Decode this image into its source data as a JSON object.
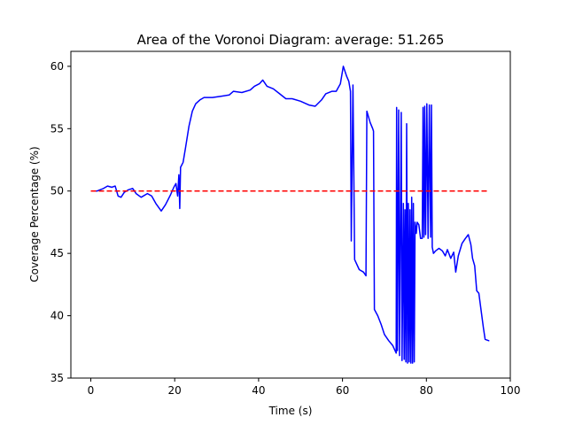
{
  "chart_data": {
    "type": "line",
    "title": "Area of the Voronoi Diagram: average: 51.265",
    "xlabel": "Time (s)",
    "ylabel": "Coverage Percentage (%)",
    "xlim": [
      -4.75,
      100
    ],
    "ylim": [
      35,
      61.2
    ],
    "xticks": [
      0,
      20,
      40,
      60,
      80,
      100
    ],
    "yticks": [
      35,
      40,
      45,
      50,
      55,
      60
    ],
    "grid": false,
    "legend": "none",
    "series": [
      {
        "name": "coverage",
        "color": "#0000ff",
        "style": "solid",
        "points": [
          [
            0,
            50.0
          ],
          [
            1.5,
            50.0
          ],
          [
            3,
            50.2
          ],
          [
            4,
            50.4
          ],
          [
            5,
            50.3
          ],
          [
            5.8,
            50.4
          ],
          [
            6.5,
            49.6
          ],
          [
            7.2,
            49.5
          ],
          [
            8,
            49.9
          ],
          [
            9,
            50.1
          ],
          [
            10,
            50.2
          ],
          [
            10.8,
            49.8
          ],
          [
            12,
            49.5
          ],
          [
            13.5,
            49.8
          ],
          [
            14.5,
            49.6
          ],
          [
            15.5,
            49.0
          ],
          [
            16.8,
            48.4
          ],
          [
            17.8,
            48.9
          ],
          [
            19,
            49.7
          ],
          [
            19.8,
            50.3
          ],
          [
            20.3,
            50.6
          ],
          [
            20.7,
            49.6
          ],
          [
            21.0,
            51.3
          ],
          [
            21.2,
            48.6
          ],
          [
            21.4,
            51.9
          ],
          [
            22,
            52.3
          ],
          [
            22.6,
            53.5
          ],
          [
            23.4,
            55.2
          ],
          [
            24.2,
            56.4
          ],
          [
            25,
            57.0
          ],
          [
            26,
            57.3
          ],
          [
            27,
            57.5
          ],
          [
            29,
            57.5
          ],
          [
            31,
            57.6
          ],
          [
            33,
            57.7
          ],
          [
            34,
            58.0
          ],
          [
            36,
            57.9
          ],
          [
            38,
            58.1
          ],
          [
            39,
            58.4
          ],
          [
            40.2,
            58.6
          ],
          [
            41,
            58.9
          ],
          [
            42,
            58.4
          ],
          [
            43.5,
            58.2
          ],
          [
            45,
            57.8
          ],
          [
            46.5,
            57.4
          ],
          [
            48,
            57.4
          ],
          [
            50,
            57.2
          ],
          [
            52,
            56.9
          ],
          [
            53.5,
            56.8
          ],
          [
            55,
            57.3
          ],
          [
            56,
            57.8
          ],
          [
            57.5,
            58.0
          ],
          [
            58.5,
            58.0
          ],
          [
            59.5,
            58.6
          ],
          [
            60.2,
            60.0
          ],
          [
            61,
            59.2
          ],
          [
            61.5,
            58.8
          ],
          [
            61.9,
            58.0
          ],
          [
            62.1,
            46.0
          ],
          [
            62.5,
            58.5
          ],
          [
            62.9,
            44.5
          ],
          [
            64,
            43.7
          ],
          [
            65,
            43.5
          ],
          [
            65.6,
            43.2
          ],
          [
            65.8,
            56.4
          ],
          [
            66.6,
            55.5
          ],
          [
            67.2,
            55.0
          ],
          [
            67.4,
            54.8
          ],
          [
            67.6,
            40.5
          ],
          [
            68.4,
            40.0
          ],
          [
            69.2,
            39.3
          ],
          [
            70,
            38.5
          ],
          [
            71,
            38.0
          ],
          [
            72,
            37.6
          ],
          [
            72.8,
            37.0
          ],
          [
            72.9,
            56.7
          ],
          [
            73.1,
            37.2
          ],
          [
            73.4,
            56.5
          ],
          [
            73.6,
            36.8
          ],
          [
            74,
            56.3
          ],
          [
            74.2,
            36.4
          ],
          [
            74.5,
            49.0
          ],
          [
            74.7,
            36.5
          ],
          [
            74.9,
            48.5
          ],
          [
            75.1,
            36.3
          ],
          [
            75.3,
            55.4
          ],
          [
            75.5,
            36.2
          ],
          [
            75.7,
            49.0
          ],
          [
            75.9,
            36.3
          ],
          [
            76.1,
            48.5
          ],
          [
            76.3,
            36.2
          ],
          [
            76.5,
            49.5
          ],
          [
            76.7,
            36.2
          ],
          [
            76.9,
            49.0
          ],
          [
            77.1,
            36.3
          ],
          [
            77.3,
            47.5
          ],
          [
            77.6,
            46.6
          ],
          [
            77.8,
            47.5
          ],
          [
            78.2,
            47.3
          ],
          [
            78.6,
            46.2
          ],
          [
            79.0,
            46.2
          ],
          [
            79.2,
            56.7
          ],
          [
            79.4,
            46.3
          ],
          [
            79.6,
            56.8
          ],
          [
            79.8,
            46.5
          ],
          [
            80.1,
            57.0
          ],
          [
            80.4,
            46.2
          ],
          [
            80.7,
            56.9
          ],
          [
            81.0,
            46.3
          ],
          [
            81.2,
            56.9
          ],
          [
            81.4,
            45.5
          ],
          [
            81.7,
            45.0
          ],
          [
            82.2,
            45.2
          ],
          [
            83,
            45.4
          ],
          [
            83.8,
            45.2
          ],
          [
            84.5,
            44.8
          ],
          [
            85,
            45.3
          ],
          [
            85.8,
            44.6
          ],
          [
            86.5,
            45.1
          ],
          [
            87,
            43.5
          ],
          [
            87.6,
            44.8
          ],
          [
            88.5,
            45.8
          ],
          [
            89.3,
            46.2
          ],
          [
            90,
            46.5
          ],
          [
            90.6,
            45.7
          ],
          [
            91,
            44.6
          ],
          [
            91.5,
            44.0
          ],
          [
            92,
            42.0
          ],
          [
            92.5,
            41.8
          ],
          [
            93,
            40.5
          ],
          [
            93.6,
            39.0
          ],
          [
            94,
            38.1
          ],
          [
            94.8,
            38.0
          ],
          [
            95,
            38.0
          ]
        ]
      },
      {
        "name": "average reference",
        "color": "#ff0000",
        "style": "dashed",
        "points": [
          [
            0,
            50.0
          ],
          [
            95,
            50.0
          ]
        ]
      }
    ]
  }
}
